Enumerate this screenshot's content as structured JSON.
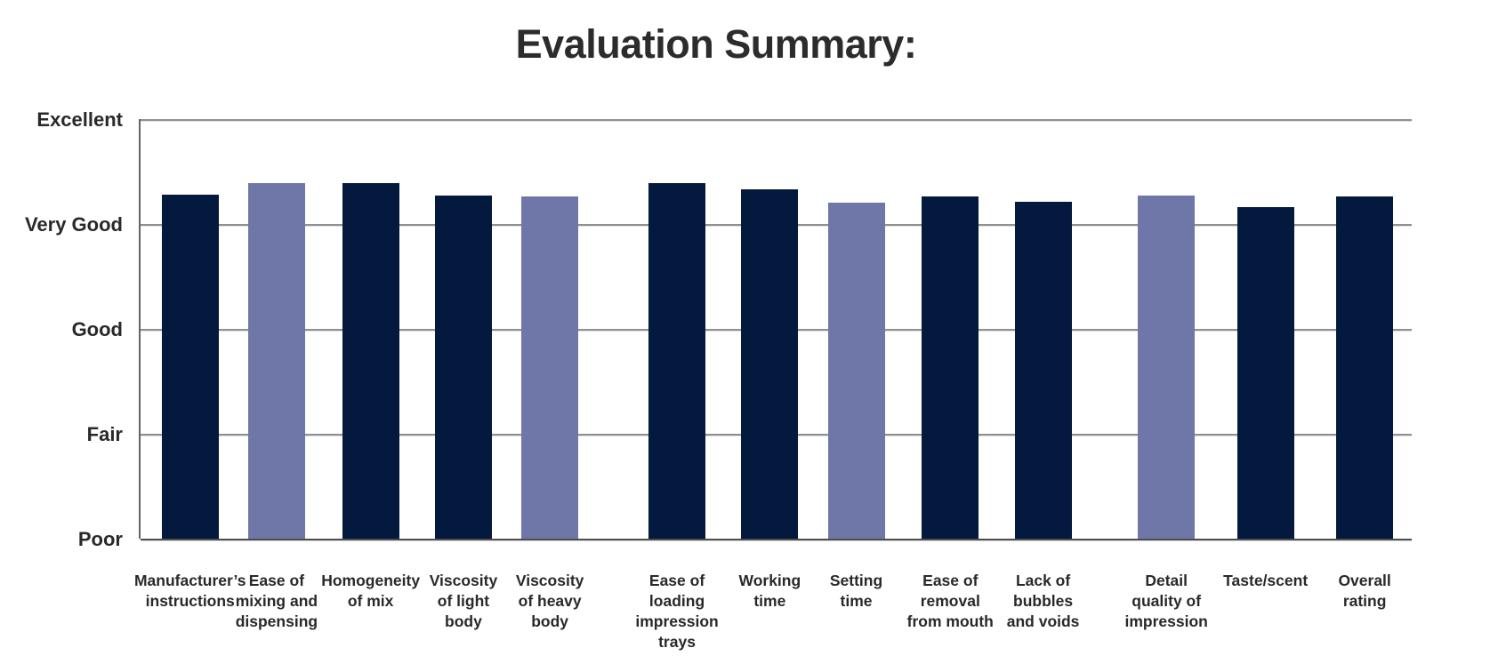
{
  "title": "Evaluation Summary:",
  "chart_data": {
    "type": "bar",
    "title": "Evaluation Summary:",
    "categories": [
      "Manufacturer’s\ninstructions",
      "Ease of\nmixing and\ndispensing",
      "Homogeneity\nof mix",
      "Viscosity\nof light\nbody",
      "Viscosity\nof heavy\nbody",
      "Ease of\nloading\nimpression\ntrays",
      "Working\ntime",
      "Setting\ntime",
      "Ease of\nremoval\nfrom mouth",
      "Lack of\nbubbles\nand voids",
      "Detail\nquality of\nimpression",
      "Taste/scent",
      "Overall\nrating"
    ],
    "values": [
      4.28,
      4.39,
      4.39,
      4.27,
      4.26,
      4.39,
      4.33,
      4.2,
      4.26,
      4.21,
      4.27,
      4.16,
      4.26
    ],
    "bar_color_keys": [
      "dark",
      "light",
      "dark",
      "dark",
      "light",
      "dark",
      "dark",
      "light",
      "dark",
      "dark",
      "light",
      "dark",
      "dark"
    ],
    "palette": {
      "dark": "#04193e",
      "light": "#6f77a9"
    },
    "ylim": [
      1,
      5
    ],
    "ytick_values": [
      1,
      2,
      3,
      4,
      5
    ],
    "ytick_labels": [
      "Poor",
      "Fair",
      "Good",
      "Very Good",
      "Excellent"
    ],
    "xlabel": "",
    "ylabel": "",
    "grid": "horizontal",
    "legend": "none",
    "layout_hints": {
      "bar_centers_pct": [
        3.9,
        10.7,
        18.1,
        25.4,
        32.2,
        42.2,
        49.5,
        56.3,
        63.7,
        71.0,
        80.7,
        88.5,
        96.3
      ]
    }
  }
}
